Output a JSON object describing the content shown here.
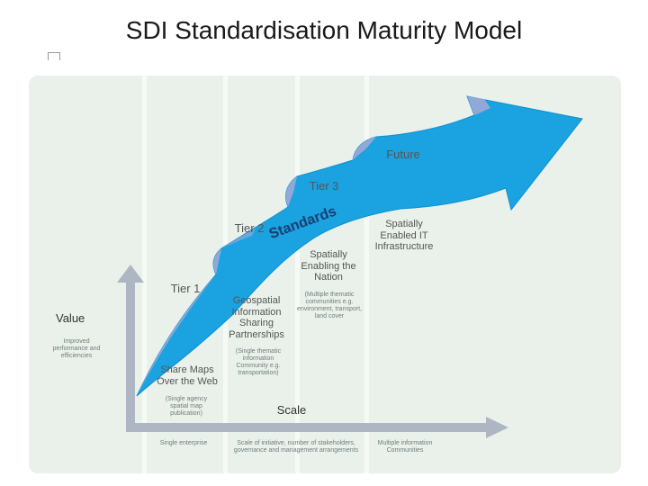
{
  "title": "SDI Standardisation Maturity Model",
  "arrow_text": "Standards",
  "tiers": {
    "tier1": "Tier 1",
    "tier2": "Tier 2",
    "tier3": "Tier 3",
    "future": "Future"
  },
  "stages": {
    "stage1": "Share Maps Over the Web",
    "stage2": "Geospatial Information Sharing Partnerships",
    "stage3": "Spatially Enabling the Nation",
    "stage4": "Spatially Enabled IT Infrastructure"
  },
  "notes": {
    "stage1": "(Single agency spatial map publication)",
    "stage2": "(Single thematic information Community e.g. transportation)",
    "stage3": "(Multiple thematic communities e.g. environment, transport, land cover"
  },
  "y_axis": {
    "title": "Value",
    "description": "Improved performance and efficiencies"
  },
  "x_axis": {
    "title": "Scale",
    "left_label": "Single enterprise",
    "middle_label": "Scale of initiative, number of stakeholders, governance and management arrangements",
    "right_label": "Multiple information Communities"
  },
  "colors": {
    "arrow": "#1aa3e0",
    "arrow_edge": "#0e8fd0",
    "lip": "#a7a9d6",
    "panel": "#eaf1ea",
    "axis": "#aeb6c4"
  }
}
